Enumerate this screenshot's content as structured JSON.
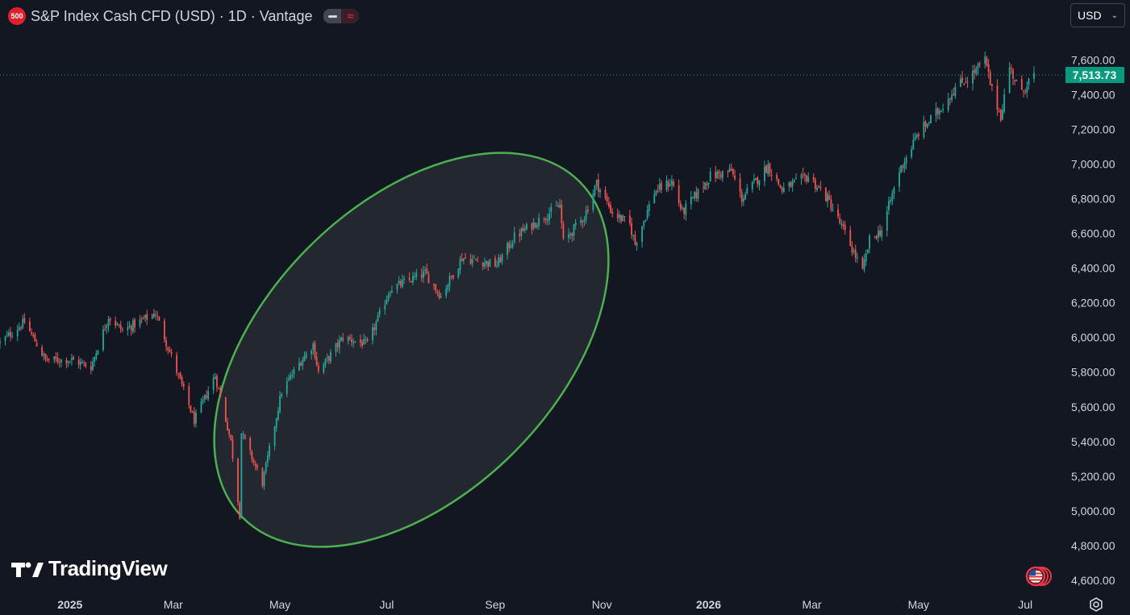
{
  "header": {
    "symbol_badge": "500",
    "title": "S&P Index Cash CFD (USD) · 1D · Vantage"
  },
  "currency_select": {
    "value": "USD"
  },
  "watermark": {
    "text": "TradingView"
  },
  "colors": {
    "background": "#131722",
    "up": "#26a69a",
    "down": "#ef5350",
    "ellipse_stroke": "#4caf50",
    "last_price_bg": "#089981",
    "axis_text": "#d1d4dc"
  },
  "chart_data": {
    "type": "candlestick",
    "x_tick_labels": [
      "2025",
      "Mar",
      "May",
      "Jul",
      "Sep",
      "Nov",
      "2026",
      "Mar",
      "May",
      "Jul"
    ],
    "y_tick_labels": [
      "7,600.00",
      "7,400.00",
      "7,200.00",
      "7,000.00",
      "6,800.00",
      "6,600.00",
      "6,400.00",
      "6,200.00",
      "6,000.00",
      "5,800.00",
      "5,600.00",
      "5,400.00",
      "5,200.00",
      "5,000.00",
      "4,800.00",
      "4,600.00"
    ],
    "ylim": [
      4530,
      7760
    ],
    "last_price": 7513.73,
    "last_price_label": "7,513.73",
    "grid": false,
    "series": [
      {
        "close_path": [
          [
            "2024-11-22",
            5970
          ],
          [
            "2024-12-06",
            6090
          ],
          [
            "2024-12-18",
            5870
          ],
          [
            "2025-01-02",
            5870
          ],
          [
            "2025-01-13",
            5830
          ],
          [
            "2025-01-23",
            6120
          ],
          [
            "2025-01-31",
            6040
          ],
          [
            "2025-02-19",
            6140
          ],
          [
            "2025-03-10",
            5610
          ],
          [
            "2025-03-13",
            5520
          ],
          [
            "2025-03-25",
            5780
          ],
          [
            "2025-04-03",
            5400
          ],
          [
            "2025-04-08",
            4980
          ],
          [
            "2025-04-09",
            5450
          ],
          [
            "2025-04-21",
            5160
          ],
          [
            "2025-05-02",
            5690
          ],
          [
            "2025-05-12",
            5850
          ],
          [
            "2025-05-20",
            5960
          ],
          [
            "2025-05-23",
            5800
          ],
          [
            "2025-06-06",
            6000
          ],
          [
            "2025-06-20",
            5960
          ],
          [
            "2025-07-03",
            6280
          ],
          [
            "2025-07-23",
            6370
          ],
          [
            "2025-08-01",
            6240
          ],
          [
            "2025-08-13",
            6460
          ],
          [
            "2025-09-02",
            6420
          ],
          [
            "2025-09-12",
            6580
          ],
          [
            "2025-10-08",
            6760
          ],
          [
            "2025-10-10",
            6550
          ],
          [
            "2025-10-22",
            6700
          ],
          [
            "2025-10-29",
            6890
          ],
          [
            "2025-11-07",
            6720
          ],
          [
            "2025-11-17",
            6650
          ],
          [
            "2025-11-20",
            6540
          ],
          [
            "2025-12-01",
            6840
          ],
          [
            "2025-12-11",
            6900
          ],
          [
            "2025-12-17",
            6720
          ],
          [
            "2026-01-02",
            6930
          ],
          [
            "2026-01-14",
            6960
          ],
          [
            "2026-01-20",
            6800
          ],
          [
            "2026-02-04",
            6990
          ],
          [
            "2026-02-12",
            6850
          ],
          [
            "2026-02-27",
            6930
          ],
          [
            "2026-03-10",
            6800
          ],
          [
            "2026-03-20",
            6600
          ],
          [
            "2026-03-30",
            6380
          ],
          [
            "2026-04-03",
            6560
          ],
          [
            "2026-04-10",
            6620
          ],
          [
            "2026-04-20",
            6960
          ],
          [
            "2026-05-01",
            7180
          ],
          [
            "2026-05-12",
            7300
          ],
          [
            "2026-05-22",
            7440
          ],
          [
            "2026-06-01",
            7520
          ],
          [
            "2026-06-08",
            7600
          ],
          [
            "2026-06-12",
            7420
          ],
          [
            "2026-06-17",
            7280
          ],
          [
            "2026-06-22",
            7560
          ],
          [
            "2026-06-29",
            7400
          ],
          [
            "2026-07-02",
            7470
          ],
          [
            "2026-07-06",
            7510
          ]
        ]
      }
    ],
    "annotations": [
      {
        "type": "ellipse",
        "description": "highlight of rally",
        "from": "2025-04",
        "to": "2025-10"
      }
    ]
  }
}
